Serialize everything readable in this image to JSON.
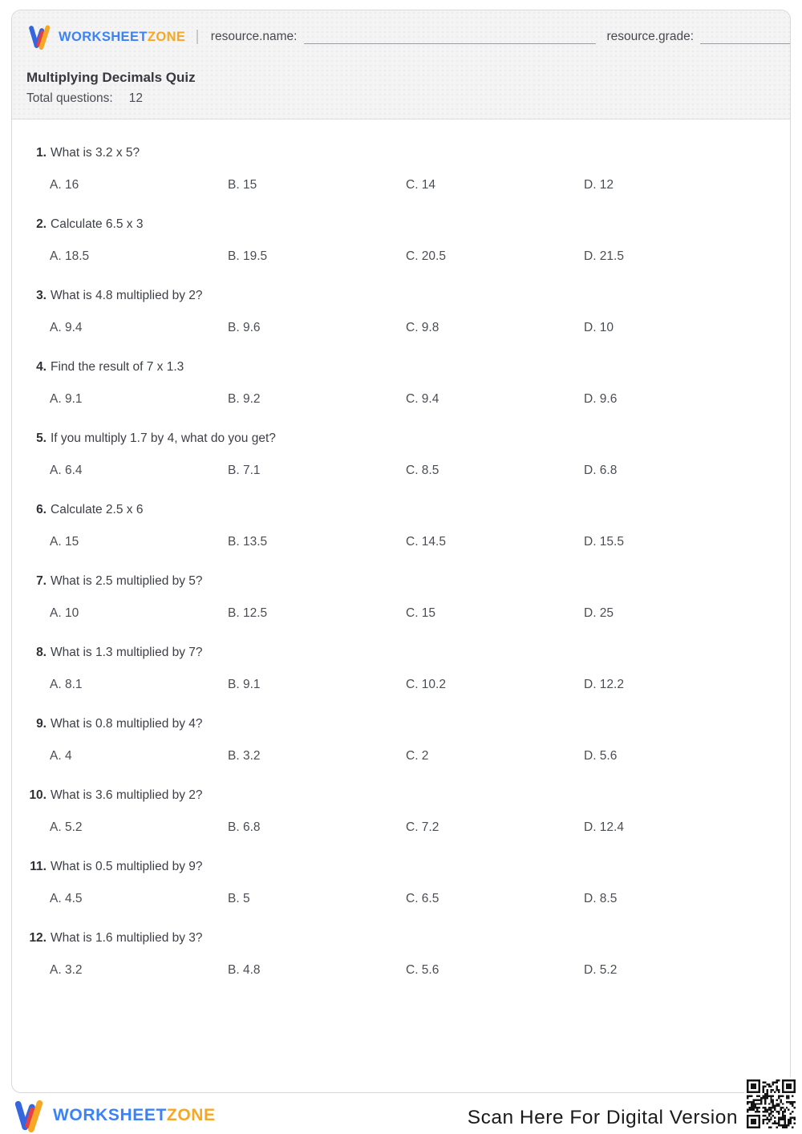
{
  "header": {
    "brand_part1": "WORKSHEET",
    "brand_part2": "ZONE",
    "name_label": "resource.name:",
    "grade_label": "resource.grade:"
  },
  "quiz": {
    "title": "Multiplying Decimals Quiz",
    "total_label": "Total questions:",
    "total_value": "12"
  },
  "questions": [
    {
      "number": "1.",
      "text": "What is 3.2 x 5?",
      "options": [
        "A. 16",
        "B. 15",
        "C. 14",
        "D. 12"
      ]
    },
    {
      "number": "2.",
      "text": "Calculate 6.5 x 3",
      "options": [
        "A. 18.5",
        "B. 19.5",
        "C. 20.5",
        "D. 21.5"
      ]
    },
    {
      "number": "3.",
      "text": "What is 4.8 multiplied by 2?",
      "options": [
        "A. 9.4",
        "B. 9.6",
        "C. 9.8",
        "D. 10"
      ]
    },
    {
      "number": "4.",
      "text": "Find the result of 7 x 1.3",
      "options": [
        "A. 9.1",
        "B. 9.2",
        "C. 9.4",
        "D. 9.6"
      ]
    },
    {
      "number": "5.",
      "text": "If you multiply 1.7 by 4, what do you get?",
      "options": [
        "A. 6.4",
        "B. 7.1",
        "C. 8.5",
        "D. 6.8"
      ]
    },
    {
      "number": "6.",
      "text": "Calculate 2.5 x 6",
      "options": [
        "A. 15",
        "B. 13.5",
        "C. 14.5",
        "D. 15.5"
      ]
    },
    {
      "number": "7.",
      "text": "What is 2.5 multiplied by 5?",
      "options": [
        "A. 10",
        "B. 12.5",
        "C. 15",
        "D. 25"
      ]
    },
    {
      "number": "8.",
      "text": "What is 1.3 multiplied by 7?",
      "options": [
        "A. 8.1",
        "B. 9.1",
        "C. 10.2",
        "D. 12.2"
      ]
    },
    {
      "number": "9.",
      "text": "What is 0.8 multiplied by 4?",
      "options": [
        "A. 4",
        "B. 3.2",
        "C. 2",
        "D. 5.6"
      ]
    },
    {
      "number": "10.",
      "text": "What is 3.6 multiplied by 2?",
      "options": [
        "A. 5.2",
        "B. 6.8",
        "C. 7.2",
        "D. 12.4"
      ]
    },
    {
      "number": "11.",
      "text": "What is 0.5 multiplied by 9?",
      "options": [
        "A. 4.5",
        "B. 5",
        "C. 6.5",
        "D. 8.5"
      ]
    },
    {
      "number": "12.",
      "text": "What is 1.6 multiplied by 3?",
      "options": [
        "A. 3.2",
        "B. 4.8",
        "C. 5.6",
        "D. 5.2"
      ]
    }
  ],
  "footer": {
    "brand_part1": "WORKSHEET",
    "brand_part2": "ZONE",
    "scan_text": "Scan Here For Digital Version",
    "qr_icon": "qr-code"
  },
  "colors": {
    "brand_blue": "#3b82f6",
    "brand_amber": "#f6a723",
    "logo_red": "#e2414a",
    "logo_mark_blue": "#3466e0",
    "header_bg": "#f4f4f5",
    "card_border": "#d8d8db",
    "question_text": "#3d4046",
    "underline_gray": "#9a9aa0",
    "qr_black": "#141414"
  }
}
